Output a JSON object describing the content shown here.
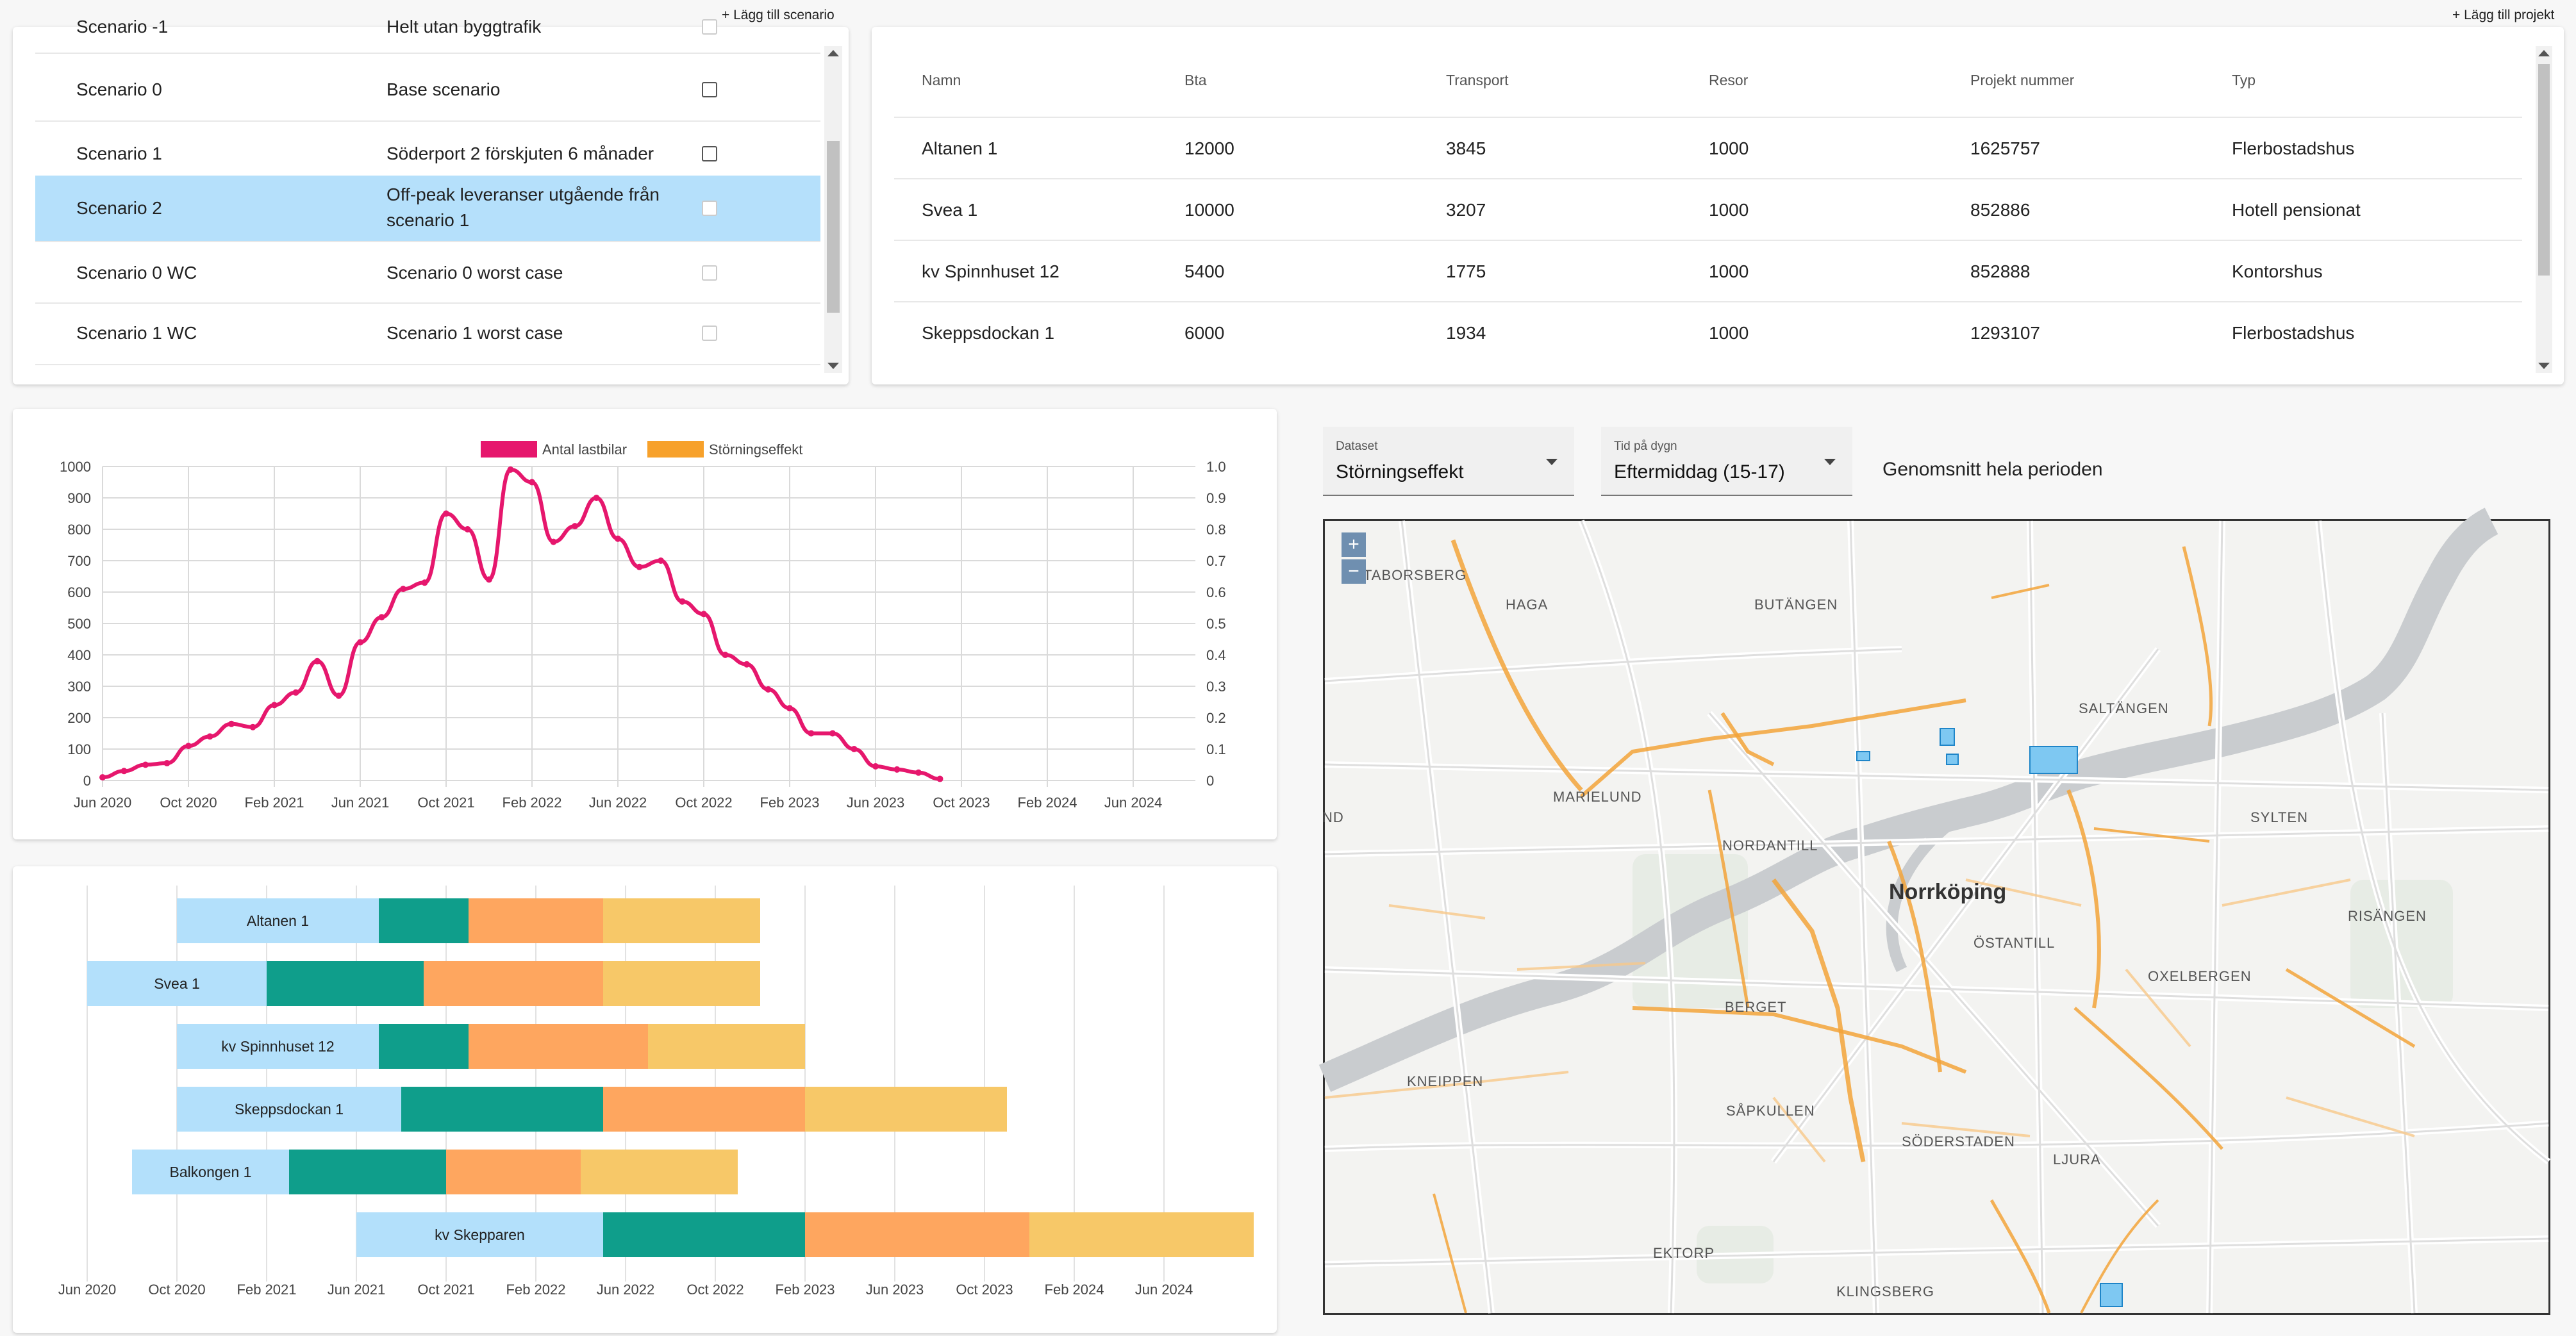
{
  "scenarios": {
    "add_label": "+ Lägg till scenario",
    "rows": [
      {
        "name": "Scenario -1",
        "desc": "Helt utan byggtrafik"
      },
      {
        "name": "Scenario 0",
        "desc": "Base scenario"
      },
      {
        "name": "Scenario 1",
        "desc": "Söderport 2 förskjuten 6 månader"
      },
      {
        "name": "Scenario 2",
        "desc": "Off-peak leveranser utgående från scenario 1"
      },
      {
        "name": "Scenario 0 WC",
        "desc": "Scenario 0 worst case"
      },
      {
        "name": "Scenario 1 WC",
        "desc": "Scenario 1 worst case"
      }
    ],
    "selected_index": 3
  },
  "projects": {
    "add_label": "+ Lägg till projekt",
    "headers": [
      "Namn",
      "Bta",
      "Transport",
      "Resor",
      "Projekt nummer",
      "Typ"
    ],
    "rows": [
      [
        "Altanen 1",
        "12000",
        "3845",
        "1000",
        "1625757",
        "Flerbostadshus"
      ],
      [
        "Svea 1",
        "10000",
        "3207",
        "1000",
        "852886",
        "Hotell pensionat"
      ],
      [
        "kv Spinnhuset 12",
        "5400",
        "1775",
        "1000",
        "852888",
        "Kontorshus"
      ],
      [
        "Skeppsdockan 1",
        "6000",
        "1934",
        "1000",
        "1293107",
        "Flerbostadshus"
      ]
    ]
  },
  "chart_data": [
    {
      "type": "line",
      "legend": [
        "Antal lastbilar",
        "Störningseffekt"
      ],
      "legend_colors": [
        "#e6176d",
        "#f7a12b"
      ],
      "x_ticks": [
        "Jun 2020",
        "Oct 2020",
        "Feb 2021",
        "Jun 2021",
        "Oct 2021",
        "Feb 2022",
        "Jun 2022",
        "Oct 2022",
        "Feb 2023",
        "Jun 2023",
        "Oct 2023",
        "Feb 2024",
        "Jun 2024"
      ],
      "y_left_ticks": [
        "0",
        "100",
        "200",
        "300",
        "400",
        "500",
        "600",
        "700",
        "800",
        "900",
        "1000"
      ],
      "y_right_ticks": [
        "0",
        "0.1",
        "0.2",
        "0.3",
        "0.4",
        "0.5",
        "0.6",
        "0.7",
        "0.8",
        "0.9",
        "1.0"
      ],
      "ylim": [
        0,
        1000
      ],
      "y2lim": [
        0,
        1
      ],
      "series": [
        {
          "name": "Antal lastbilar",
          "color": "#e6176d",
          "values": [
            10,
            30,
            50,
            55,
            110,
            140,
            180,
            170,
            240,
            280,
            380,
            270,
            440,
            520,
            610,
            630,
            850,
            800,
            640,
            990,
            950,
            760,
            810,
            900,
            770,
            680,
            700,
            570,
            530,
            400,
            370,
            290,
            230,
            150,
            150,
            100,
            45,
            35,
            25,
            5
          ]
        }
      ]
    },
    {
      "type": "bar",
      "subtype": "horizontal-stacked-timeline",
      "categories": [
        "Altanen 1",
        "Svea 1",
        "kv Spinnhuset 12",
        "Skeppsdockan 1",
        "Balkongen 1",
        "kv Skepparen"
      ],
      "x_ticks": [
        "Jun 2020",
        "Oct 2020",
        "Feb 2021",
        "Jun 2021",
        "Oct 2021",
        "Feb 2022",
        "Jun 2022",
        "Oct 2022",
        "Feb 2023",
        "Jun 2023",
        "Oct 2023",
        "Feb 2024",
        "Jun 2024"
      ],
      "phase_colors": [
        "#b3e0fb",
        "#0f9e8b",
        "#fea65f",
        "#f7c868"
      ],
      "bars": [
        {
          "name": "Altanen 1",
          "start": "2020-10",
          "phases": [
            "2021-07",
            "2021-11",
            "2022-05",
            "2022-12"
          ]
        },
        {
          "name": "Svea 1",
          "start": "2020-06",
          "phases": [
            "2021-02",
            "2021-09",
            "2022-05",
            "2022-12"
          ]
        },
        {
          "name": "kv Spinnhuset 12",
          "start": "2020-10",
          "phases": [
            "2021-07",
            "2021-11",
            "2022-07",
            "2023-02"
          ]
        },
        {
          "name": "Skeppsdockan 1",
          "start": "2020-10",
          "phases": [
            "2021-08",
            "2022-05",
            "2023-02",
            "2023-11"
          ]
        },
        {
          "name": "Balkongen 1",
          "start": "2020-08",
          "phases": [
            "2021-03",
            "2021-10",
            "2022-04",
            "2022-11"
          ]
        },
        {
          "name": "kv Skepparen",
          "start": "2021-06",
          "phases": [
            "2022-05",
            "2023-02",
            "2023-12",
            "2024-10"
          ]
        }
      ]
    }
  ],
  "map_controls": {
    "dataset_label": "Dataset",
    "dataset_value": "Störningseffekt",
    "time_label": "Tid på dygn",
    "time_value": "Eftermiddag (15-17)",
    "period_text": "Genomsnitt hela perioden"
  },
  "map": {
    "city": "Norrköping",
    "labels": [
      "HAGA",
      "BUTÄNGEN",
      "SALTÄNGEN",
      "MARIELUND",
      "NORDANTILL",
      "SYLTEN",
      "ÖSTANTILL",
      "RISÄNGEN",
      "OXELBERGEN",
      "BERGET",
      "KNEIPPEN",
      "SÅPKULLEN",
      "SÖDERSTADEN",
      "LJURA",
      "EKTORP",
      "KLINGSBERG",
      "TABORSBERG",
      "ND"
    ],
    "zoom_in": "+",
    "zoom_out": "−"
  }
}
